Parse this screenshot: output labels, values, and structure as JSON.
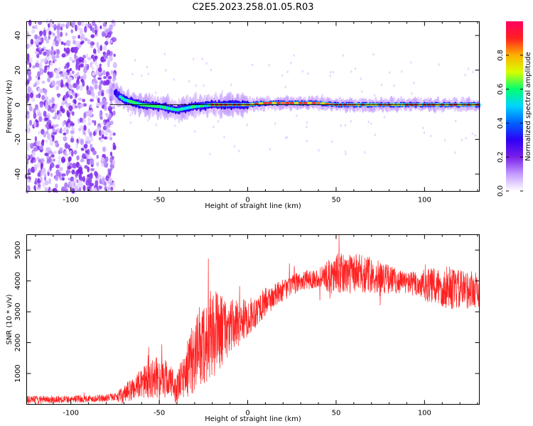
{
  "title": "C2E5.2023.258.01.05.R03",
  "chart_data": [
    {
      "type": "heatmap",
      "xlabel": "Height of straight line (km)",
      "ylabel": "Frequency (Hz)",
      "xlim": [
        -125,
        131
      ],
      "ylim": [
        -50,
        48
      ],
      "xticks": [
        -100,
        -50,
        0,
        50,
        100
      ],
      "yticks": [
        -40,
        -20,
        0,
        20,
        40
      ],
      "colorbar": {
        "label": "Normalized spectral amplitude",
        "range": [
          0,
          1
        ],
        "ticks": [
          0.0,
          0.2,
          0.4,
          0.6,
          0.8
        ],
        "colors": [
          "#ffffff",
          "#c39bff",
          "#7a1fe8",
          "#2e00f5",
          "#0060ff",
          "#00d4ff",
          "#00ff70",
          "#d6ff00",
          "#ffb000",
          "#ff2020",
          "#ff0060"
        ]
      },
      "noise_region": {
        "x": [
          -125,
          -75
        ],
        "y": [
          -50,
          48
        ]
      },
      "ridge": [
        {
          "x": -75,
          "y": 7
        },
        {
          "x": -70,
          "y": 3
        },
        {
          "x": -60,
          "y": 0
        },
        {
          "x": -50,
          "y": -1
        },
        {
          "x": -40,
          "y": -3
        },
        {
          "x": -30,
          "y": -1
        },
        {
          "x": -20,
          "y": 0
        },
        {
          "x": -10,
          "y": 0
        },
        {
          "x": 0,
          "y": 0
        },
        {
          "x": 10,
          "y": 1
        },
        {
          "x": 20,
          "y": 1
        },
        {
          "x": 30,
          "y": 1
        },
        {
          "x": 40,
          "y": 1
        },
        {
          "x": 50,
          "y": 0
        },
        {
          "x": 60,
          "y": 0
        },
        {
          "x": 70,
          "y": 0
        },
        {
          "x": 80,
          "y": 0
        },
        {
          "x": 90,
          "y": 0
        },
        {
          "x": 100,
          "y": 0
        },
        {
          "x": 110,
          "y": 0
        },
        {
          "x": 120,
          "y": 0
        },
        {
          "x": 131,
          "y": 0
        }
      ]
    },
    {
      "type": "line",
      "xlabel": "Height of straight line (km)",
      "ylabel": "SNR (10 * v/v)",
      "xlim": [
        -125,
        131
      ],
      "ylim": [
        0,
        5500
      ],
      "xticks": [
        -100,
        -50,
        0,
        50,
        100
      ],
      "yticks": [
        1000,
        2000,
        3000,
        4000,
        5000
      ],
      "color": "#ff2020",
      "trend": [
        {
          "x": -125,
          "y": 150
        },
        {
          "x": -100,
          "y": 170
        },
        {
          "x": -80,
          "y": 200
        },
        {
          "x": -70,
          "y": 300
        },
        {
          "x": -60,
          "y": 700
        },
        {
          "x": -50,
          "y": 900
        },
        {
          "x": -45,
          "y": 800
        },
        {
          "x": -40,
          "y": 500
        },
        {
          "x": -30,
          "y": 1600
        },
        {
          "x": -20,
          "y": 2300
        },
        {
          "x": -10,
          "y": 2500
        },
        {
          "x": 0,
          "y": 2800
        },
        {
          "x": 10,
          "y": 3300
        },
        {
          "x": 20,
          "y": 3700
        },
        {
          "x": 30,
          "y": 4000
        },
        {
          "x": 40,
          "y": 4100
        },
        {
          "x": 50,
          "y": 4200
        },
        {
          "x": 60,
          "y": 4250
        },
        {
          "x": 70,
          "y": 4200
        },
        {
          "x": 80,
          "y": 4050
        },
        {
          "x": 90,
          "y": 3950
        },
        {
          "x": 100,
          "y": 3850
        },
        {
          "x": 110,
          "y": 3800
        },
        {
          "x": 120,
          "y": 3700
        },
        {
          "x": 131,
          "y": 3750
        }
      ],
      "spread": [
        {
          "x": -125,
          "y": 120
        },
        {
          "x": -75,
          "y": 120
        },
        {
          "x": -70,
          "y": 300
        },
        {
          "x": -50,
          "y": 700
        },
        {
          "x": -40,
          "y": 500
        },
        {
          "x": -30,
          "y": 1200
        },
        {
          "x": -20,
          "y": 1500
        },
        {
          "x": -10,
          "y": 900
        },
        {
          "x": 0,
          "y": 600
        },
        {
          "x": 20,
          "y": 350
        },
        {
          "x": 40,
          "y": 300
        },
        {
          "x": 50,
          "y": 700
        },
        {
          "x": 70,
          "y": 600
        },
        {
          "x": 90,
          "y": 350
        },
        {
          "x": 110,
          "y": 700
        },
        {
          "x": 131,
          "y": 600
        }
      ]
    }
  ]
}
